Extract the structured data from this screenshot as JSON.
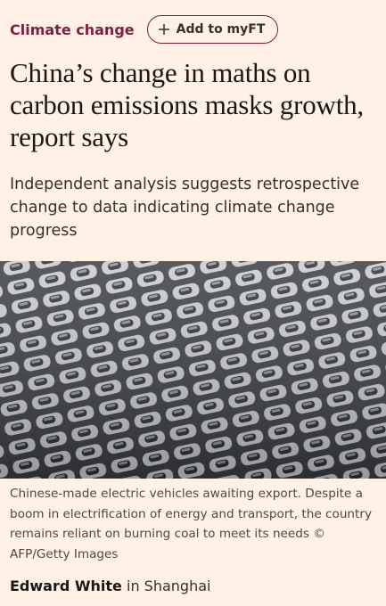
{
  "topic": "Climate change",
  "follow_button": "Add to myFT",
  "headline": "China’s change in maths on carbon emissions masks growth, report says",
  "standfirst": "Independent analysis suggests retrospective change to data indicating climate change progress",
  "image": {
    "caption": "Chinese-made electric vehicles awaiting export. Despite a boom in electrification of energy and transport, the country remains reliant on burning coal to meet its needs © AFP/Getty Images"
  },
  "byline": {
    "author": "Edward White",
    "location": "in Shanghai"
  }
}
